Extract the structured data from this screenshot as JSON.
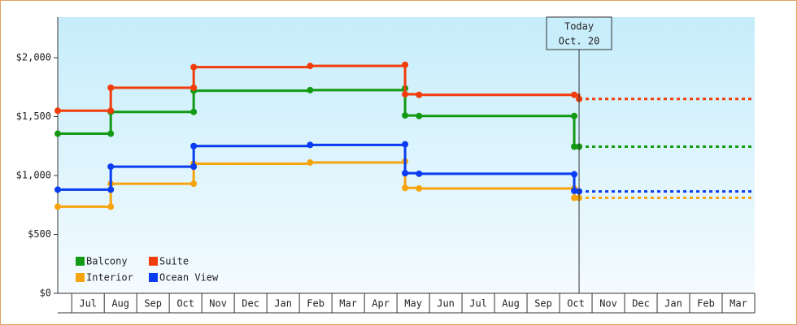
{
  "chart_data": {
    "type": "step",
    "categories": [
      "Jul",
      "Aug",
      "Sep",
      "Oct",
      "Nov",
      "Dec",
      "Jan",
      "Feb",
      "Mar",
      "Apr",
      "May",
      "Jun",
      "Jul",
      "Aug",
      "Sep",
      "Oct",
      "Nov",
      "Dec",
      "Jan",
      "Feb",
      "Mar"
    ],
    "xlim": [
      -0.43,
      21
    ],
    "ylim": [
      0,
      2345
    ],
    "yticks": [
      {
        "value": 0,
        "label": "$0"
      },
      {
        "value": 500,
        "label": "$500"
      },
      {
        "value": 1000,
        "label": "$1,000"
      },
      {
        "value": 1500,
        "label": "$1,500"
      },
      {
        "value": 2000,
        "label": "$2,000"
      }
    ],
    "legend": "lower left",
    "annotation": {
      "x": 15.6,
      "lines": [
        "Today",
        "Oct. 20"
      ]
    },
    "series": [
      {
        "name": "Balcony",
        "color": "#139a13",
        "x": [
          -0.43,
          1.2,
          1.2,
          3.75,
          3.75,
          7.33,
          10.25,
          10.25,
          10.68,
          15.45,
          15.45,
          15.6
        ],
        "values": [
          1355,
          1355,
          1540,
          1540,
          1720,
          1725,
          1740,
          1510,
          1505,
          1505,
          1245,
          1245
        ]
      },
      {
        "name": "Suite",
        "color": "#f23c0c",
        "x": [
          -0.43,
          1.2,
          1.2,
          3.75,
          3.75,
          7.33,
          10.25,
          10.25,
          10.68,
          15.45,
          15.6
        ],
        "values": [
          1550,
          1550,
          1745,
          1745,
          1920,
          1930,
          1940,
          1690,
          1685,
          1685,
          1650
        ]
      },
      {
        "name": "Interior",
        "color": "#f7a40f",
        "x": [
          -0.43,
          1.2,
          1.2,
          3.75,
          3.75,
          7.33,
          10.25,
          10.25,
          10.68,
          15.45,
          15.45,
          15.6
        ],
        "values": [
          735,
          735,
          930,
          930,
          1100,
          1110,
          1120,
          895,
          890,
          890,
          810,
          810
        ]
      },
      {
        "name": "Ocean View",
        "color": "#0a3cf2",
        "x": [
          -0.43,
          1.2,
          1.2,
          3.75,
          3.75,
          7.33,
          10.25,
          10.25,
          10.68,
          15.45,
          15.45,
          15.6
        ],
        "values": [
          880,
          880,
          1075,
          1075,
          1250,
          1260,
          1265,
          1020,
          1015,
          1010,
          870,
          865
        ]
      }
    ]
  }
}
